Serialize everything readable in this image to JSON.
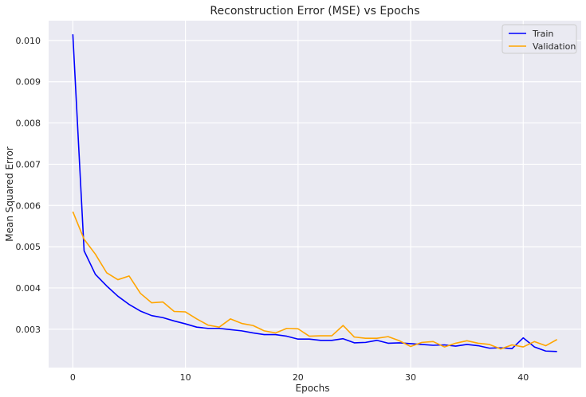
{
  "chart_data": {
    "type": "line",
    "title": "Reconstruction Error (MSE) vs Epochs",
    "xlabel": "Epochs",
    "ylabel": "Mean Squared Error",
    "xlim": [
      -2.15,
      45.15
    ],
    "ylim": [
      0.00207,
      0.01048
    ],
    "xticks": [
      0,
      10,
      20,
      30,
      40
    ],
    "yticks": [
      0.003,
      0.004,
      0.005,
      0.006,
      0.007,
      0.008,
      0.009,
      0.01
    ],
    "ytick_labels": [
      "0.003",
      "0.004",
      "0.005",
      "0.006",
      "0.007",
      "0.008",
      "0.009",
      "0.010"
    ],
    "grid": true,
    "legend_position": "upper right",
    "x": [
      0,
      1,
      2,
      3,
      4,
      5,
      6,
      7,
      8,
      9,
      10,
      11,
      12,
      13,
      14,
      15,
      16,
      17,
      18,
      19,
      20,
      21,
      22,
      23,
      24,
      25,
      26,
      27,
      28,
      29,
      30,
      31,
      32,
      33,
      34,
      35,
      36,
      37,
      38,
      39,
      40,
      41,
      42,
      43
    ],
    "series": [
      {
        "name": "Train",
        "color": "#0000ff",
        "values": [
          0.01015,
          0.0049,
          0.00433,
          0.00405,
          0.0038,
          0.0036,
          0.00344,
          0.00333,
          0.00328,
          0.0032,
          0.00313,
          0.00305,
          0.00302,
          0.00302,
          0.00299,
          0.00296,
          0.00291,
          0.00287,
          0.00287,
          0.00283,
          0.00276,
          0.00276,
          0.00273,
          0.00273,
          0.00277,
          0.00267,
          0.00268,
          0.00273,
          0.00266,
          0.00267,
          0.00265,
          0.00263,
          0.00261,
          0.00262,
          0.00259,
          0.00263,
          0.0026,
          0.00254,
          0.00255,
          0.00253,
          0.00279,
          0.00257,
          0.00247,
          0.00246
        ]
      },
      {
        "name": "Validation",
        "color": "#ffa500",
        "values": [
          0.00585,
          0.00518,
          0.00482,
          0.00437,
          0.0042,
          0.00429,
          0.00387,
          0.00364,
          0.00366,
          0.00343,
          0.00342,
          0.00325,
          0.0031,
          0.00305,
          0.00325,
          0.00314,
          0.00309,
          0.00296,
          0.00291,
          0.00302,
          0.00301,
          0.00283,
          0.00284,
          0.00284,
          0.00309,
          0.00281,
          0.00278,
          0.00278,
          0.00282,
          0.00272,
          0.00258,
          0.00268,
          0.0027,
          0.00257,
          0.00266,
          0.00272,
          0.00266,
          0.00263,
          0.00252,
          0.00262,
          0.00257,
          0.0027,
          0.0026,
          0.00275
        ]
      }
    ]
  }
}
